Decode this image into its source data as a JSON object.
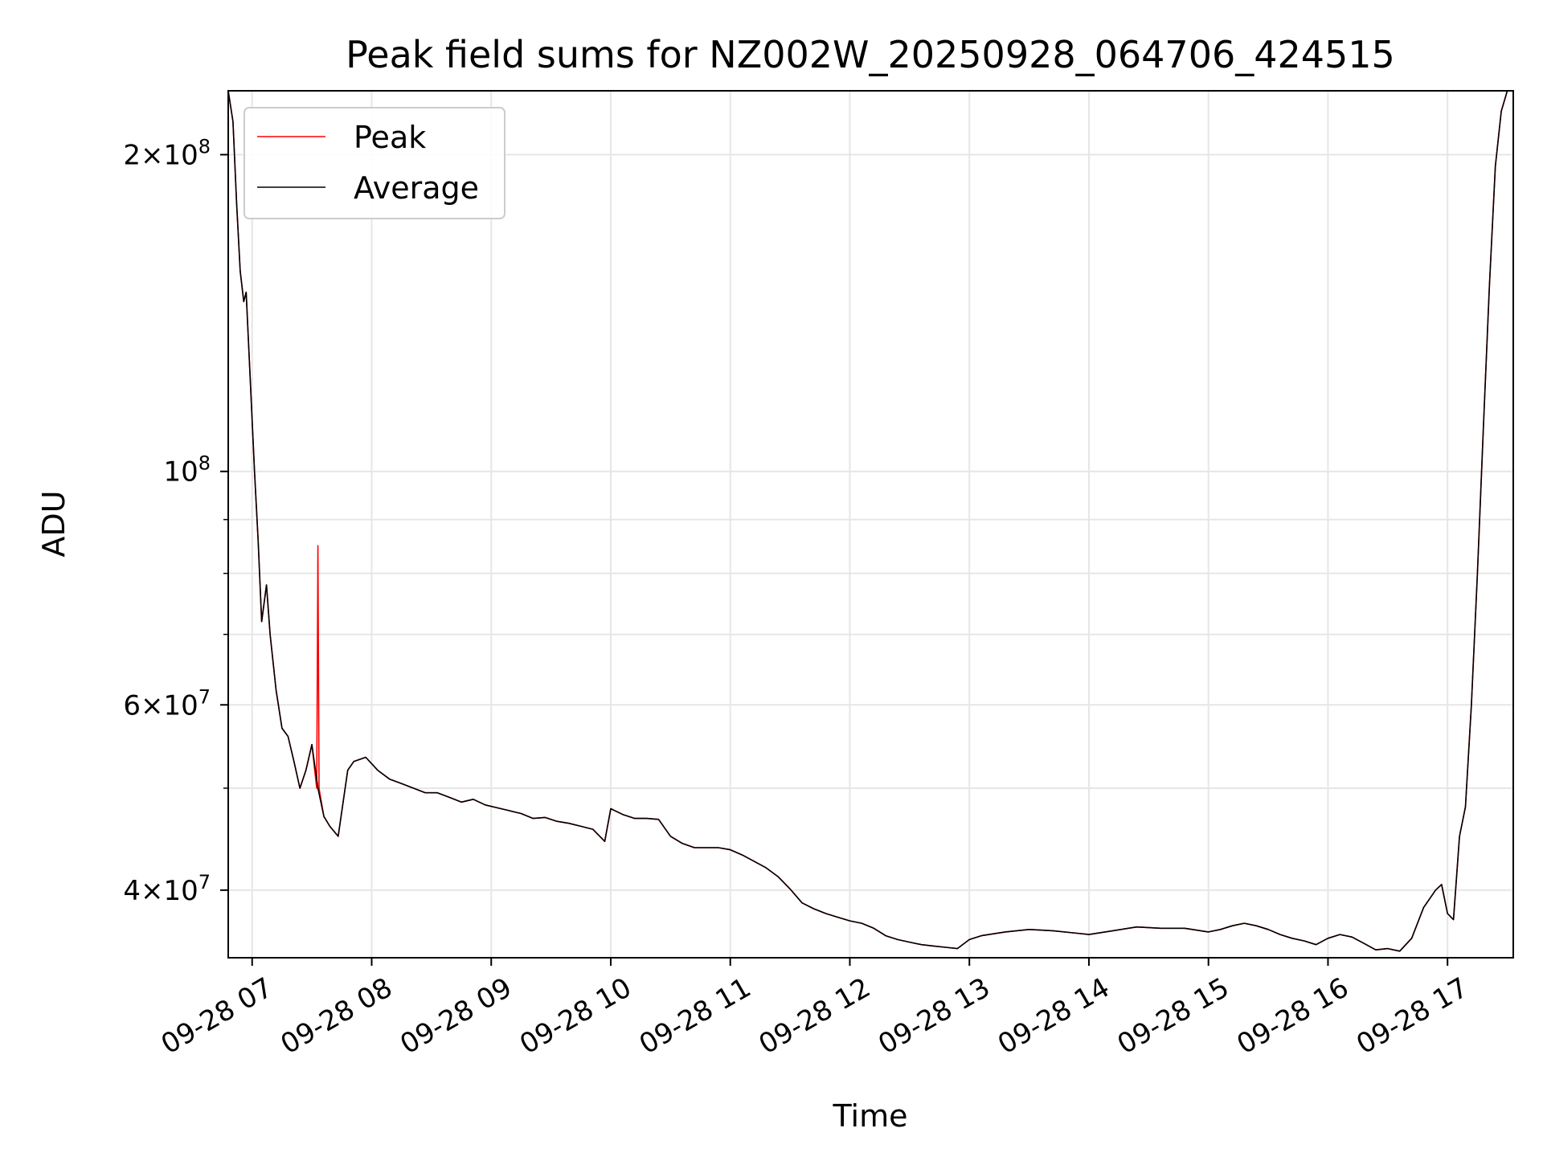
{
  "chart_data": {
    "type": "line",
    "title": "Peak field sums for NZ002W_20250928_064706_424515",
    "xlabel": "Time",
    "ylabel": "ADU",
    "yscale": "log",
    "ylim": [
      34500000,
      230000000
    ],
    "xlim_hours": [
      6.8,
      17.55
    ],
    "grid": true,
    "legend_position": "upper-left",
    "x_ticks": [
      {
        "value": 7,
        "label": "09-28 07"
      },
      {
        "value": 8,
        "label": "09-28 08"
      },
      {
        "value": 9,
        "label": "09-28 09"
      },
      {
        "value": 10,
        "label": "09-28 10"
      },
      {
        "value": 11,
        "label": "09-28 11"
      },
      {
        "value": 12,
        "label": "09-28 12"
      },
      {
        "value": 13,
        "label": "09-28 13"
      },
      {
        "value": 14,
        "label": "09-28 14"
      },
      {
        "value": 15,
        "label": "09-28 15"
      },
      {
        "value": 16,
        "label": "09-28 16"
      },
      {
        "value": 17,
        "label": "09-28 17"
      }
    ],
    "y_major_ticks": [
      {
        "value": 40000000,
        "mant": "4",
        "exp": "7"
      },
      {
        "value": 60000000,
        "mant": "6",
        "exp": "7"
      },
      {
        "value": 100000000,
        "mant": "",
        "exp": "8"
      },
      {
        "value": 200000000,
        "mant": "2",
        "exp": "8"
      }
    ],
    "y_minor_grid": [
      50000000,
      70000000,
      80000000,
      90000000
    ],
    "series": [
      {
        "name": "Average",
        "color": "#000000",
        "points": [
          [
            6.8,
            230000000
          ],
          [
            6.84,
            215000000
          ],
          [
            6.87,
            180000000
          ],
          [
            6.9,
            155000000
          ],
          [
            6.93,
            145000000
          ],
          [
            6.95,
            148000000
          ],
          [
            6.98,
            125000000
          ],
          [
            7.02,
            100000000
          ],
          [
            7.05,
            86000000
          ],
          [
            7.08,
            72000000
          ],
          [
            7.12,
            78000000
          ],
          [
            7.15,
            70000000
          ],
          [
            7.2,
            62000000
          ],
          [
            7.25,
            57000000
          ],
          [
            7.3,
            56000000
          ],
          [
            7.35,
            53000000
          ],
          [
            7.4,
            50000000
          ],
          [
            7.45,
            52000000
          ],
          [
            7.5,
            55000000
          ],
          [
            7.55,
            50000000
          ],
          [
            7.6,
            47000000
          ],
          [
            7.65,
            46000000
          ],
          [
            7.72,
            45000000
          ],
          [
            7.8,
            52000000
          ],
          [
            7.85,
            53000000
          ],
          [
            7.95,
            53500000
          ],
          [
            8.05,
            52000000
          ],
          [
            8.15,
            51000000
          ],
          [
            8.25,
            50500000
          ],
          [
            8.35,
            50000000
          ],
          [
            8.45,
            49500000
          ],
          [
            8.55,
            49500000
          ],
          [
            8.65,
            49000000
          ],
          [
            8.75,
            48500000
          ],
          [
            8.85,
            48800000
          ],
          [
            8.95,
            48200000
          ],
          [
            9.05,
            47900000
          ],
          [
            9.15,
            47600000
          ],
          [
            9.25,
            47300000
          ],
          [
            9.35,
            46800000
          ],
          [
            9.45,
            46900000
          ],
          [
            9.55,
            46500000
          ],
          [
            9.65,
            46300000
          ],
          [
            9.75,
            46000000
          ],
          [
            9.85,
            45700000
          ],
          [
            9.95,
            44500000
          ],
          [
            10.0,
            47800000
          ],
          [
            10.1,
            47200000
          ],
          [
            10.2,
            46800000
          ],
          [
            10.3,
            46800000
          ],
          [
            10.4,
            46700000
          ],
          [
            10.5,
            45000000
          ],
          [
            10.6,
            44300000
          ],
          [
            10.7,
            43900000
          ],
          [
            10.8,
            43900000
          ],
          [
            10.9,
            43900000
          ],
          [
            11.0,
            43700000
          ],
          [
            11.1,
            43200000
          ],
          [
            11.2,
            42600000
          ],
          [
            11.3,
            42000000
          ],
          [
            11.4,
            41200000
          ],
          [
            11.5,
            40100000
          ],
          [
            11.6,
            38900000
          ],
          [
            11.7,
            38400000
          ],
          [
            11.8,
            38000000
          ],
          [
            11.9,
            37700000
          ],
          [
            12.0,
            37400000
          ],
          [
            12.1,
            37200000
          ],
          [
            12.2,
            36800000
          ],
          [
            12.3,
            36200000
          ],
          [
            12.4,
            35900000
          ],
          [
            12.5,
            35700000
          ],
          [
            12.6,
            35500000
          ],
          [
            12.7,
            35400000
          ],
          [
            12.8,
            35300000
          ],
          [
            12.9,
            35200000
          ],
          [
            13.0,
            35900000
          ],
          [
            13.1,
            36200000
          ],
          [
            13.3,
            36500000
          ],
          [
            13.5,
            36700000
          ],
          [
            13.7,
            36600000
          ],
          [
            13.9,
            36400000
          ],
          [
            14.0,
            36300000
          ],
          [
            14.2,
            36600000
          ],
          [
            14.4,
            36900000
          ],
          [
            14.6,
            36800000
          ],
          [
            14.8,
            36800000
          ],
          [
            15.0,
            36500000
          ],
          [
            15.1,
            36700000
          ],
          [
            15.2,
            37000000
          ],
          [
            15.3,
            37200000
          ],
          [
            15.4,
            37000000
          ],
          [
            15.5,
            36700000
          ],
          [
            15.6,
            36300000
          ],
          [
            15.7,
            36000000
          ],
          [
            15.8,
            35800000
          ],
          [
            15.9,
            35500000
          ],
          [
            16.0,
            36000000
          ],
          [
            16.1,
            36300000
          ],
          [
            16.2,
            36100000
          ],
          [
            16.3,
            35600000
          ],
          [
            16.4,
            35100000
          ],
          [
            16.5,
            35200000
          ],
          [
            16.6,
            35000000
          ],
          [
            16.7,
            36000000
          ],
          [
            16.8,
            38500000
          ],
          [
            16.9,
            40000000
          ],
          [
            16.95,
            40500000
          ],
          [
            17.0,
            38000000
          ],
          [
            17.05,
            37500000
          ],
          [
            17.1,
            45000000
          ],
          [
            17.15,
            48000000
          ],
          [
            17.2,
            60000000
          ],
          [
            17.25,
            80000000
          ],
          [
            17.3,
            110000000
          ],
          [
            17.35,
            150000000
          ],
          [
            17.4,
            195000000
          ],
          [
            17.45,
            220000000
          ],
          [
            17.5,
            230000000
          ]
        ]
      },
      {
        "name": "Peak",
        "color": "#ff0000",
        "points": [
          [
            6.8,
            230000000
          ],
          [
            6.84,
            215000000
          ],
          [
            6.87,
            180000000
          ],
          [
            6.9,
            155000000
          ],
          [
            6.93,
            145000000
          ],
          [
            6.95,
            148000000
          ],
          [
            6.98,
            125000000
          ],
          [
            7.02,
            100000000
          ],
          [
            7.05,
            86000000
          ],
          [
            7.08,
            72000000
          ],
          [
            7.12,
            78000000
          ],
          [
            7.15,
            70000000
          ],
          [
            7.2,
            62000000
          ],
          [
            7.25,
            57000000
          ],
          [
            7.3,
            56000000
          ],
          [
            7.35,
            53000000
          ],
          [
            7.4,
            50000000
          ],
          [
            7.45,
            52000000
          ],
          [
            7.5,
            55000000
          ],
          [
            7.54,
            50000000
          ],
          [
            7.55,
            85000000
          ],
          [
            7.56,
            50000000
          ],
          [
            7.6,
            47000000
          ],
          [
            7.65,
            46000000
          ],
          [
            7.72,
            45000000
          ],
          [
            7.8,
            52000000
          ],
          [
            7.85,
            53000000
          ],
          [
            7.95,
            53500000
          ],
          [
            8.05,
            52000000
          ],
          [
            8.15,
            51000000
          ],
          [
            8.25,
            50500000
          ],
          [
            8.35,
            50000000
          ],
          [
            8.45,
            49500000
          ],
          [
            8.55,
            49500000
          ],
          [
            8.65,
            49000000
          ],
          [
            8.75,
            48500000
          ],
          [
            8.85,
            48800000
          ],
          [
            8.95,
            48200000
          ],
          [
            9.05,
            47900000
          ],
          [
            9.15,
            47600000
          ],
          [
            9.25,
            47300000
          ],
          [
            9.35,
            46800000
          ],
          [
            9.45,
            46900000
          ],
          [
            9.55,
            46500000
          ],
          [
            9.65,
            46300000
          ],
          [
            9.75,
            46000000
          ],
          [
            9.85,
            45700000
          ],
          [
            9.95,
            44500000
          ],
          [
            10.0,
            47800000
          ],
          [
            10.1,
            47200000
          ],
          [
            10.2,
            46800000
          ],
          [
            10.3,
            46800000
          ],
          [
            10.4,
            46700000
          ],
          [
            10.5,
            45000000
          ],
          [
            10.6,
            44300000
          ],
          [
            10.7,
            43900000
          ],
          [
            10.8,
            43900000
          ],
          [
            10.9,
            43900000
          ],
          [
            11.0,
            43700000
          ],
          [
            11.1,
            43200000
          ],
          [
            11.2,
            42600000
          ],
          [
            11.3,
            42000000
          ],
          [
            11.4,
            41200000
          ],
          [
            11.5,
            40100000
          ],
          [
            11.6,
            38900000
          ],
          [
            11.7,
            38400000
          ],
          [
            11.8,
            38000000
          ],
          [
            11.9,
            37700000
          ],
          [
            12.0,
            37400000
          ],
          [
            12.1,
            37200000
          ],
          [
            12.2,
            36800000
          ],
          [
            12.3,
            36200000
          ],
          [
            12.4,
            35900000
          ],
          [
            12.5,
            35700000
          ],
          [
            12.6,
            35500000
          ],
          [
            12.7,
            35400000
          ],
          [
            12.8,
            35300000
          ],
          [
            12.9,
            35200000
          ],
          [
            13.0,
            35900000
          ],
          [
            13.1,
            36200000
          ],
          [
            13.3,
            36500000
          ],
          [
            13.5,
            36700000
          ],
          [
            13.7,
            36600000
          ],
          [
            13.9,
            36400000
          ],
          [
            14.0,
            36300000
          ],
          [
            14.2,
            36600000
          ],
          [
            14.4,
            36900000
          ],
          [
            14.6,
            36800000
          ],
          [
            14.8,
            36800000
          ],
          [
            15.0,
            36500000
          ],
          [
            15.1,
            36700000
          ],
          [
            15.2,
            37000000
          ],
          [
            15.3,
            37200000
          ],
          [
            15.4,
            37000000
          ],
          [
            15.5,
            36700000
          ],
          [
            15.6,
            36300000
          ],
          [
            15.7,
            36000000
          ],
          [
            15.8,
            35800000
          ],
          [
            15.9,
            35500000
          ],
          [
            16.0,
            36000000
          ],
          [
            16.1,
            36300000
          ],
          [
            16.2,
            36100000
          ],
          [
            16.3,
            35600000
          ],
          [
            16.4,
            35100000
          ],
          [
            16.5,
            35200000
          ],
          [
            16.6,
            35000000
          ],
          [
            16.7,
            36000000
          ],
          [
            16.8,
            38500000
          ],
          [
            16.9,
            40000000
          ],
          [
            16.95,
            40500000
          ],
          [
            17.0,
            38000000
          ],
          [
            17.05,
            37500000
          ],
          [
            17.1,
            45000000
          ],
          [
            17.15,
            48000000
          ],
          [
            17.2,
            60000000
          ],
          [
            17.25,
            80000000
          ],
          [
            17.3,
            110000000
          ],
          [
            17.35,
            150000000
          ],
          [
            17.4,
            195000000
          ],
          [
            17.45,
            220000000
          ],
          [
            17.5,
            230000000
          ]
        ]
      }
    ]
  },
  "legend": [
    {
      "label": "Peak",
      "color": "#ff0000"
    },
    {
      "label": "Average",
      "color": "#000000"
    }
  ]
}
